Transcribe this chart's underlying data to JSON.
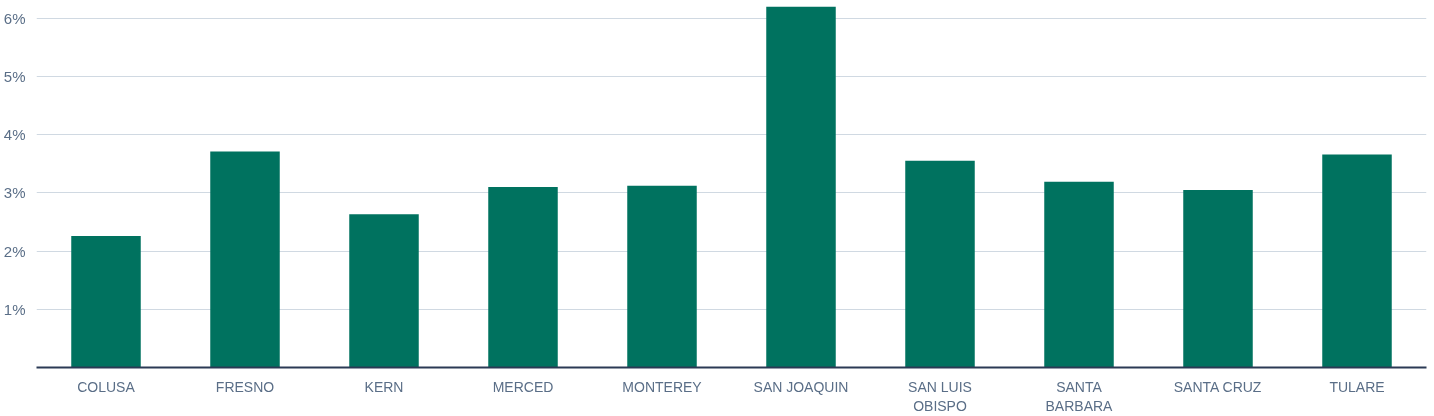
{
  "chart_data": {
    "type": "bar",
    "categories": [
      "COLUSA",
      "FRESNO",
      "KERN",
      "MERCED",
      "MONTEREY",
      "SAN JOAQUIN",
      "SAN LUIS OBISPO",
      "SANTA BARBARA",
      "SANTA CRUZ",
      "TULARE"
    ],
    "values": [
      2.26,
      3.71,
      2.63,
      3.1,
      3.12,
      6.2,
      3.55,
      3.19,
      3.05,
      3.66
    ],
    "color": "#00725f",
    "ylim": [
      0,
      6.2
    ],
    "yticks": [
      {
        "value": 1,
        "label": "1%"
      },
      {
        "value": 2,
        "label": "2%"
      },
      {
        "value": 3,
        "label": "3%"
      },
      {
        "value": 4,
        "label": "4%"
      },
      {
        "value": 5,
        "label": "5%"
      },
      {
        "value": 6,
        "label": "6%"
      }
    ],
    "grid": "y"
  }
}
